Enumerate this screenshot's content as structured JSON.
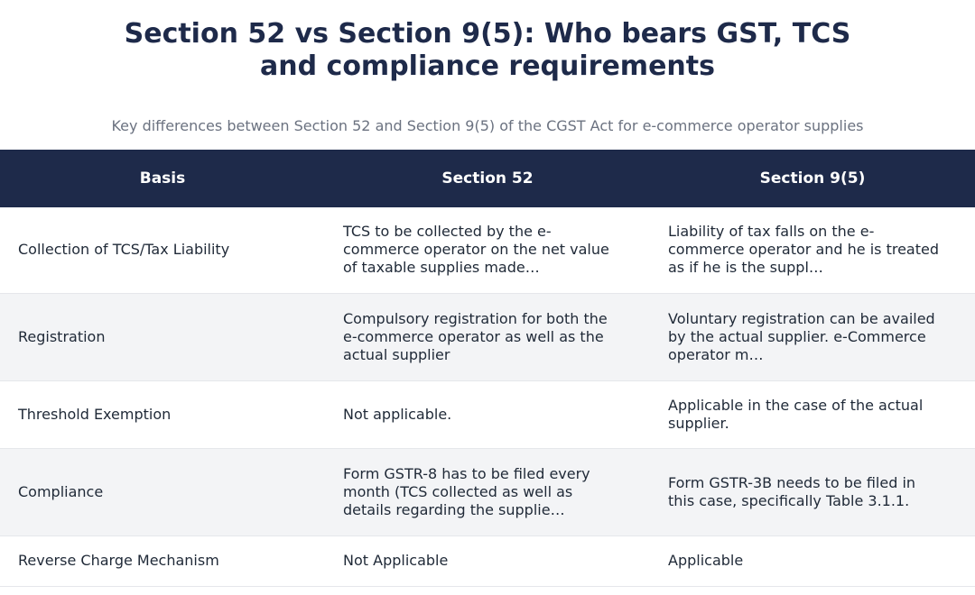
{
  "header": {
    "title": "Section 52 vs Section 9(5): Who bears GST, TCS and compliance requirements",
    "subtitle": "Key differences between Section 52 and Section 9(5) of the CGST Act for e-commerce operator supplies"
  },
  "table": {
    "columns": [
      "Basis",
      "Section 52",
      "Section 9(5)"
    ],
    "rows": [
      [
        "Collection of TCS/Tax Liability",
        "TCS to be collected by the e-commerce operator on the net value of taxable supplies made…",
        "Liability of tax falls on the e-commerce operator and he is treated as if he is the suppl…"
      ],
      [
        "Registration",
        "Compulsory registration for both the e-commerce operator as well as the actual supplier",
        "Voluntary registration can be availed by the actual supplier. e-Commerce operator m…"
      ],
      [
        "Threshold Exemption",
        "Not applicable.",
        "Applicable in the case of the actual supplier."
      ],
      [
        "Compliance",
        "Form GSTR-8 has to be filed every month (TCS collected as well as details regarding the supplie…",
        "Form GSTR-3B needs to be filed in this case, specifically Table 3.1.1."
      ],
      [
        "Reverse Charge Mechanism",
        "Not Applicable",
        "Applicable"
      ]
    ]
  }
}
